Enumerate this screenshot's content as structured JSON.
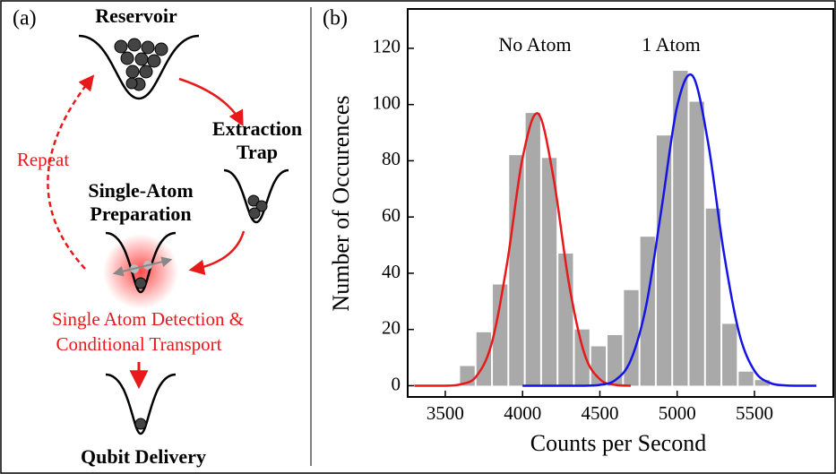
{
  "diagram": {
    "panel_label": "(a)",
    "reservoir": "Reservoir",
    "extraction_line1": "Extraction",
    "extraction_line2": "Trap",
    "preparation_line1": "Single-Atom",
    "preparation_line2": "Preparation",
    "repeat": "Repeat",
    "detection_line1": "Single Atom Detection &",
    "detection_line2": "Conditional Transport",
    "delivery": "Qubit Delivery"
  },
  "chart_data": {
    "type": "histogram",
    "panel_label": "(b)",
    "xlabel": "Counts per Second",
    "ylabel": "Number of Occurences",
    "annotations": [
      "No Atom",
      "1 Atom"
    ],
    "bins": [
      3590,
      3696,
      3802,
      3908,
      4014,
      4120,
      4226,
      4332,
      4438,
      4544,
      4650,
      4756,
      4862,
      4968,
      5074,
      5180,
      5286,
      5392,
      5498,
      5604
    ],
    "values": [
      7,
      19,
      36,
      82,
      97,
      81,
      47,
      20,
      14,
      18,
      34,
      53,
      89,
      112,
      101,
      63,
      22,
      5,
      2
    ],
    "color": "#a9a9a9",
    "fits": [
      {
        "color": "#e8191b",
        "x": [
          3300,
          3400,
          3500,
          3600,
          3700,
          3800,
          3900,
          4000,
          4100,
          4200,
          4300,
          4400,
          4500,
          4600,
          4700
        ],
        "values": [
          0,
          0,
          0,
          0.5,
          3.3,
          15,
          43.6,
          81,
          96.8,
          74,
          36.4,
          11.4,
          2.3,
          0.3,
          0
        ]
      },
      {
        "color": "#1414e6",
        "x": [
          4000,
          4100,
          4200,
          4300,
          4400,
          4500,
          4600,
          4700,
          4800,
          4900,
          5000,
          5100,
          5200,
          5300,
          5400,
          5500,
          5600,
          5700,
          5800,
          5900
        ],
        "values": [
          0,
          0,
          0,
          0,
          0,
          0.3,
          2,
          9.1,
          28.6,
          63.4,
          99.4,
          110.2,
          86.5,
          48,
          18.9,
          5.3,
          1,
          0.1,
          0,
          0
        ]
      }
    ],
    "xlim": [
      3257,
      6010
    ],
    "ylim": [
      -4,
      134
    ],
    "xticks": [
      3500,
      4000,
      4500,
      5000,
      5500
    ],
    "yticks": [
      0,
      20,
      40,
      60,
      80,
      100,
      120
    ]
  }
}
